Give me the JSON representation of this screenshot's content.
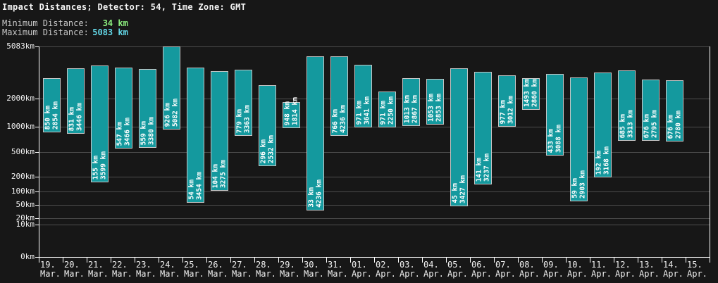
{
  "header": {
    "title": "Impact Distances; Detector: 54, Time Zone: GMT",
    "min_label": "Minimum Distance:",
    "min_value": "34 km",
    "max_label": "Maximum Distance:",
    "max_value": "5083 km"
  },
  "colors": {
    "background": "#171717",
    "bar_fill": "#14999e",
    "bar_border": "#c6c6c6",
    "grid": "#4d4d4d",
    "axis": "#ffffff",
    "text": "#f0f0f0",
    "min_value_color": "#8cee7e",
    "max_value_color": "#63d8e8"
  },
  "chart_data": {
    "type": "bar",
    "subtype": "floating-range-bars",
    "title": "Impact Distances; Detector: 54, Time Zone: GMT",
    "unit": "km",
    "legend": "none",
    "grid": "on",
    "y_axis": {
      "scale": "log-like-custom",
      "ticks": [
        {
          "label": "5083km",
          "value": 5083
        },
        {
          "label": "2000km",
          "value": 2000
        },
        {
          "label": "1000km",
          "value": 1000
        },
        {
          "label": "500km",
          "value": 500
        },
        {
          "label": "200km",
          "value": 200
        },
        {
          "label": "100km",
          "value": 100
        },
        {
          "label": "50km",
          "value": 50
        },
        {
          "label": "20km",
          "value": 20
        },
        {
          "label": "10km",
          "value": 10
        },
        {
          "label": "0km",
          "value": 0
        }
      ]
    },
    "categories": [
      {
        "day": "19.",
        "month": "Mar."
      },
      {
        "day": "20.",
        "month": "Mar."
      },
      {
        "day": "21.",
        "month": "Mar."
      },
      {
        "day": "22.",
        "month": "Mar."
      },
      {
        "day": "23.",
        "month": "Mar."
      },
      {
        "day": "24.",
        "month": "Mar."
      },
      {
        "day": "25.",
        "month": "Mar."
      },
      {
        "day": "26.",
        "month": "Mar."
      },
      {
        "day": "27.",
        "month": "Mar."
      },
      {
        "day": "28.",
        "month": "Mar."
      },
      {
        "day": "29.",
        "month": "Mar."
      },
      {
        "day": "30.",
        "month": "Mar."
      },
      {
        "day": "31.",
        "month": "Mar."
      },
      {
        "day": "01.",
        "month": "Apr."
      },
      {
        "day": "02.",
        "month": "Apr."
      },
      {
        "day": "03.",
        "month": "Apr."
      },
      {
        "day": "04.",
        "month": "Apr."
      },
      {
        "day": "05.",
        "month": "Apr."
      },
      {
        "day": "06.",
        "month": "Apr."
      },
      {
        "day": "07.",
        "month": "Apr."
      },
      {
        "day": "08.",
        "month": "Apr."
      },
      {
        "day": "09.",
        "month": "Apr."
      },
      {
        "day": "10.",
        "month": "Apr."
      },
      {
        "day": "11.",
        "month": "Apr."
      },
      {
        "day": "12.",
        "month": "Apr."
      },
      {
        "day": "13.",
        "month": "Apr."
      },
      {
        "day": "14.",
        "month": "Apr."
      },
      {
        "day": "15.",
        "month": "Apr."
      }
    ],
    "series": [
      {
        "name": "impact-distance-range-km",
        "bars": [
          {
            "min": 850,
            "max": 2854
          },
          {
            "min": 831,
            "max": 3446
          },
          {
            "min": 155,
            "max": 3599
          },
          {
            "min": 547,
            "max": 3466
          },
          {
            "min": 559,
            "max": 3380
          },
          {
            "min": 926,
            "max": 5082
          },
          {
            "min": 54,
            "max": 3454
          },
          {
            "min": 104,
            "max": 3275
          },
          {
            "min": 779,
            "max": 3363
          },
          {
            "min": 296,
            "max": 2532
          },
          {
            "min": 948,
            "max": 1814
          },
          {
            "min": 33,
            "max": 4236
          },
          {
            "min": 766,
            "max": 4236
          },
          {
            "min": 971,
            "max": 3641
          },
          {
            "min": 971,
            "max": 2250
          },
          {
            "min": 1013,
            "max": 2867
          },
          {
            "min": 1053,
            "max": 2853
          },
          {
            "min": 45,
            "max": 3427
          },
          {
            "min": 141,
            "max": 3237
          },
          {
            "min": 977,
            "max": 3012
          },
          {
            "min": 1493,
            "max": 2860
          },
          {
            "min": 433,
            "max": 3088
          },
          {
            "min": 59,
            "max": 2903
          },
          {
            "min": 192,
            "max": 3168
          },
          {
            "min": 685,
            "max": 3313
          },
          {
            "min": 676,
            "max": 2795
          },
          {
            "min": 676,
            "max": 2780
          },
          null
        ]
      }
    ]
  }
}
